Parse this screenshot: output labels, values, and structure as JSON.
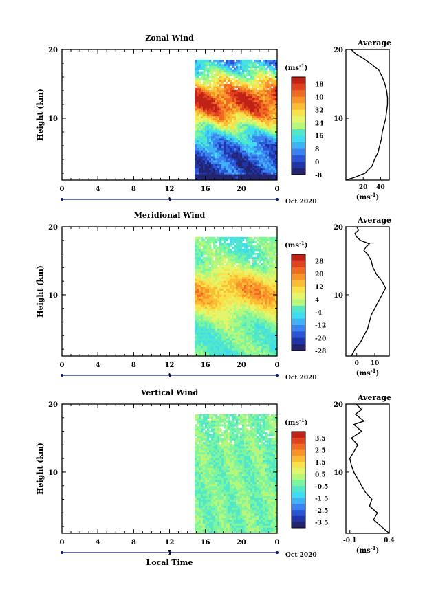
{
  "chart_data": [
    {
      "type": "heatmap",
      "title": "Zonal Wind",
      "ylabel": "Height (km)",
      "xlabel": "",
      "y_ticks": [
        "20",
        "10"
      ],
      "x_ticks": [
        "0",
        "4",
        "8",
        "12",
        "16",
        "20",
        "0"
      ],
      "date_tick": "5",
      "date_label": "Oct 2020",
      "unit_label": "(ms",
      "colorbar": {
        "labels": [
          "48",
          "40",
          "32",
          "24",
          "16",
          "8",
          "0",
          "-8"
        ],
        "min": -8,
        "max": 52,
        "step": 4
      },
      "data_x_range": [
        14.8,
        24
      ],
      "ylim": [
        1,
        20
      ],
      "profile": {
        "title": "Average",
        "y_ticks": [
          "20",
          "10"
        ],
        "x_ticks": [
          "20",
          "40"
        ],
        "xlim": [
          0,
          50
        ],
        "x": [
          0,
          10,
          22,
          30,
          33,
          37,
          39,
          41,
          42,
          44,
          46,
          47,
          48,
          48,
          47,
          45,
          42,
          38,
          33,
          28,
          20,
          12,
          6
        ],
        "y": [
          1,
          1.4,
          2,
          3,
          4,
          5,
          6,
          7,
          8,
          9,
          10,
          11,
          12,
          13,
          14,
          15,
          16,
          17,
          17.5,
          18,
          18.7,
          19.3,
          20
        ]
      }
    },
    {
      "type": "heatmap",
      "title": "Meridional Wind",
      "ylabel": "Height (km)",
      "xlabel": "",
      "y_ticks": [
        "20",
        "10"
      ],
      "x_ticks": [
        "0",
        "4",
        "8",
        "12",
        "16",
        "20",
        "0"
      ],
      "date_tick": "5",
      "date_label": "Oct 2020",
      "unit_label": "(ms",
      "colorbar": {
        "labels": [
          "28",
          "20",
          "12",
          "4",
          "-4",
          "-12",
          "-20",
          "-28"
        ],
        "min": -28,
        "max": 32,
        "step": 4
      },
      "data_x_range": [
        14.8,
        24
      ],
      "ylim": [
        1,
        20
      ],
      "profile": {
        "title": "Average",
        "y_ticks": [
          "20",
          "10"
        ],
        "x_ticks": [
          "0",
          "10"
        ],
        "xlim": [
          -6,
          18
        ],
        "x": [
          -3,
          -1,
          2,
          4,
          6,
          7,
          8,
          10,
          12,
          14,
          15,
          16,
          14,
          11,
          9,
          8,
          6,
          4,
          5,
          7,
          2,
          0,
          -1,
          1,
          0
        ],
        "y": [
          1,
          2,
          3,
          4,
          5,
          6,
          7,
          8,
          9,
          10,
          10.5,
          11,
          12,
          13,
          14,
          15,
          16,
          16.5,
          17,
          17.5,
          18,
          18.5,
          19,
          19.5,
          20
        ]
      }
    },
    {
      "type": "heatmap",
      "title": "Vertical Wind",
      "ylabel": "Height (km)",
      "xlabel": "Local Time",
      "y_ticks": [
        "20",
        "10"
      ],
      "x_ticks": [
        "0",
        "4",
        "8",
        "12",
        "16",
        "20",
        "0"
      ],
      "date_tick": "5",
      "date_label": "Oct 2020",
      "unit_label": "(ms",
      "colorbar": {
        "labels": [
          "3.5",
          "2.5",
          "1.5",
          "0.5",
          "-0.5",
          "-1.5",
          "-2.5",
          "-3.5"
        ],
        "min": -4,
        "max": 4,
        "step": 0.5
      },
      "data_x_range": [
        14.8,
        24
      ],
      "ylim": [
        1,
        20
      ],
      "profile": {
        "title": "Average",
        "y_ticks": [
          "20",
          "10"
        ],
        "x_ticks": [
          "-0.1",
          "0.4"
        ],
        "xlim": [
          -0.15,
          0.4
        ],
        "x": [
          0.4,
          0.3,
          0.2,
          0.25,
          0.15,
          0.18,
          0.1,
          0.05,
          0.0,
          -0.05,
          -0.08,
          -0.1,
          -0.05,
          0.0,
          -0.08,
          0.05,
          -0.05,
          0.08,
          -0.03,
          0.05,
          -0.02
        ],
        "y": [
          1,
          2,
          3,
          4,
          5,
          6,
          7,
          8,
          9,
          10,
          11,
          12,
          13,
          14,
          15,
          16,
          17,
          17.5,
          18.5,
          19.2,
          20
        ]
      }
    }
  ]
}
